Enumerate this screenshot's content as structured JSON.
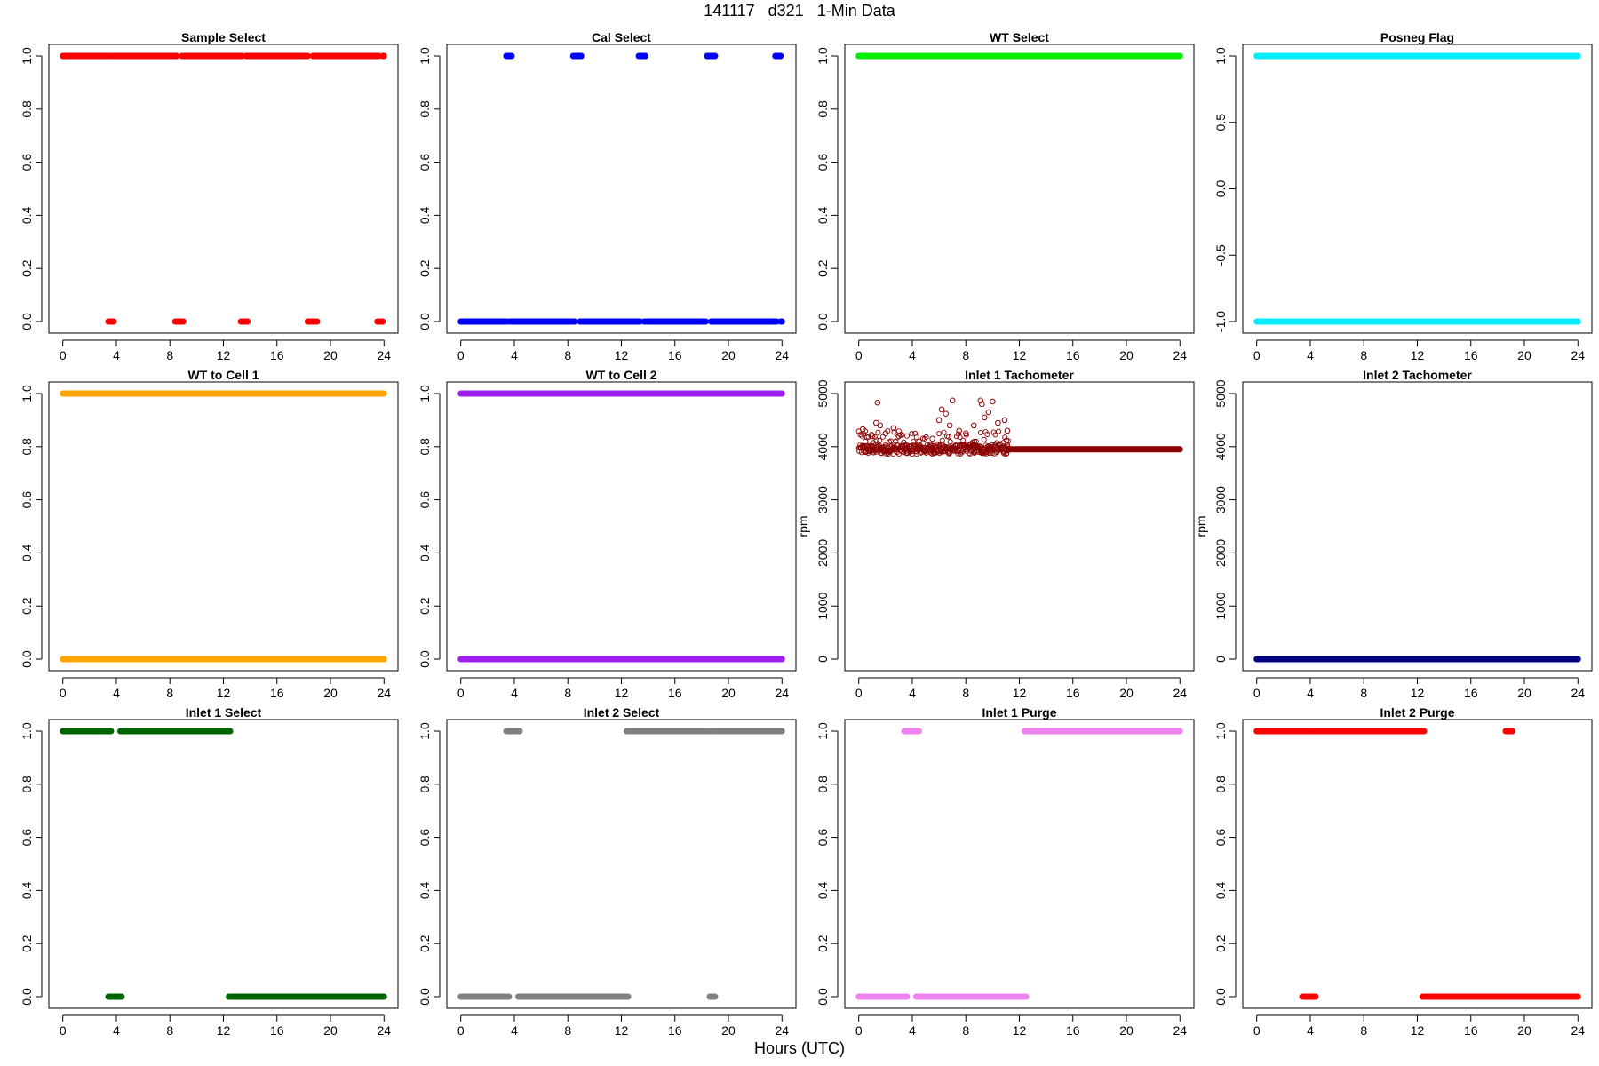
{
  "page": {
    "title": "141117   d321   1-Min Data",
    "x_caption": "Hours (UTC)"
  },
  "chart_data": [
    {
      "type": "scatter",
      "title": "Sample Select",
      "ylabel": "",
      "ylim": [
        0,
        1
      ],
      "yticks": [
        "0.0",
        "0.2",
        "0.4",
        "0.6",
        "0.8",
        "1.0"
      ],
      "yvals": [
        0,
        0.2,
        0.4,
        0.6,
        0.8,
        1.0
      ],
      "xlim": [
        0,
        24
      ],
      "xticks": [
        0,
        4,
        8,
        12,
        16,
        20,
        24
      ],
      "color": "#ff0000",
      "series": [
        {
          "y": 1,
          "x_ranges": [
            [
              0,
              3.5
            ],
            [
              3.7,
              8.5
            ],
            [
              8.9,
              13.4
            ],
            [
              13.7,
              18.3
            ],
            [
              18.7,
              23.6
            ],
            [
              23.9,
              24
            ]
          ]
        },
        {
          "y": 0,
          "x_ranges": [
            [
              3.4,
              3.8
            ],
            [
              8.4,
              9.0
            ],
            [
              13.3,
              13.8
            ],
            [
              18.3,
              19.0
            ],
            [
              23.5,
              23.9
            ]
          ]
        }
      ]
    },
    {
      "type": "scatter",
      "title": "Cal Select",
      "ylabel": "",
      "ylim": [
        0,
        1
      ],
      "yticks": [
        "0.0",
        "0.2",
        "0.4",
        "0.6",
        "0.8",
        "1.0"
      ],
      "yvals": [
        0,
        0.2,
        0.4,
        0.6,
        0.8,
        1.0
      ],
      "xlim": [
        0,
        24
      ],
      "xticks": [
        0,
        4,
        8,
        12,
        16,
        20,
        24
      ],
      "color": "#0000ff",
      "series": [
        {
          "y": 1,
          "x_ranges": [
            [
              3.4,
              3.8
            ],
            [
              8.4,
              9.0
            ],
            [
              13.3,
              13.8
            ],
            [
              18.4,
              19.0
            ],
            [
              23.5,
              23.9
            ]
          ]
        },
        {
          "y": 0,
          "x_ranges": [
            [
              0,
              3.5
            ],
            [
              3.7,
              8.5
            ],
            [
              8.9,
              13.4
            ],
            [
              13.7,
              18.3
            ],
            [
              18.7,
              23.6
            ],
            [
              23.9,
              24
            ]
          ]
        }
      ]
    },
    {
      "type": "scatter",
      "title": "WT Select",
      "ylabel": "",
      "ylim": [
        0,
        1
      ],
      "yticks": [
        "0.0",
        "0.2",
        "0.4",
        "0.6",
        "0.8",
        "1.0"
      ],
      "yvals": [
        0,
        0.2,
        0.4,
        0.6,
        0.8,
        1.0
      ],
      "xlim": [
        0,
        24
      ],
      "xticks": [
        0,
        4,
        8,
        12,
        16,
        20,
        24
      ],
      "color": "#00ee00",
      "series": [
        {
          "y": 1,
          "x_ranges": [
            [
              0,
              24
            ]
          ]
        }
      ]
    },
    {
      "type": "scatter",
      "title": "Posneg Flag",
      "ylabel": "",
      "ylim": [
        -1,
        1
      ],
      "yticks": [
        "-1.0",
        "-0.5",
        "0.0",
        "0.5",
        "1.0"
      ],
      "yvals": [
        -1,
        -0.5,
        0,
        0.5,
        1
      ],
      "xlim": [
        0,
        24
      ],
      "xticks": [
        0,
        4,
        8,
        12,
        16,
        20,
        24
      ],
      "color": "#00eeff",
      "series": [
        {
          "y": 1,
          "x_ranges": [
            [
              0,
              24
            ]
          ]
        },
        {
          "y": -1,
          "x_ranges": [
            [
              0,
              24
            ]
          ]
        }
      ]
    },
    {
      "type": "scatter",
      "title": "WT to Cell 1",
      "ylabel": "",
      "ylim": [
        0,
        1
      ],
      "yticks": [
        "0.0",
        "0.2",
        "0.4",
        "0.6",
        "0.8",
        "1.0"
      ],
      "yvals": [
        0,
        0.2,
        0.4,
        0.6,
        0.8,
        1.0
      ],
      "xlim": [
        0,
        24
      ],
      "xticks": [
        0,
        4,
        8,
        12,
        16,
        20,
        24
      ],
      "color": "#ffa500",
      "series": [
        {
          "y": 1,
          "x_ranges": [
            [
              0,
              24
            ]
          ]
        },
        {
          "y": 0,
          "x_ranges": [
            [
              0,
              24
            ]
          ]
        }
      ]
    },
    {
      "type": "scatter",
      "title": "WT to Cell 2",
      "ylabel": "",
      "ylim": [
        0,
        1
      ],
      "yticks": [
        "0.0",
        "0.2",
        "0.4",
        "0.6",
        "0.8",
        "1.0"
      ],
      "yvals": [
        0,
        0.2,
        0.4,
        0.6,
        0.8,
        1.0
      ],
      "xlim": [
        0,
        24
      ],
      "xticks": [
        0,
        4,
        8,
        12,
        16,
        20,
        24
      ],
      "color": "#a020f0",
      "series": [
        {
          "y": 1,
          "x_ranges": [
            [
              0,
              24
            ]
          ]
        },
        {
          "y": 0,
          "x_ranges": [
            [
              0,
              24
            ]
          ]
        }
      ]
    },
    {
      "type": "scatter",
      "title": "Inlet 1 Tachometer",
      "ylabel": "rpm",
      "ylim": [
        0,
        5000
      ],
      "yticks": [
        "0",
        "1000",
        "2000",
        "3000",
        "4000",
        "5000"
      ],
      "yvals": [
        0,
        1000,
        2000,
        3000,
        4000,
        5000
      ],
      "xlim": [
        0,
        24
      ],
      "xticks": [
        0,
        4,
        8,
        12,
        16,
        20,
        24
      ],
      "color": "#8b0000",
      "noisy": {
        "x_start": 0,
        "x_end": 11.2,
        "base": 3950
      },
      "spikes": [
        {
          "x": 0.3,
          "y": 4330
        },
        {
          "x": 0.5,
          "y": 4100
        },
        {
          "x": 1.0,
          "y": 4200
        },
        {
          "x": 1.3,
          "y": 4450
        },
        {
          "x": 1.4,
          "y": 4830
        },
        {
          "x": 1.6,
          "y": 4400
        },
        {
          "x": 2.0,
          "y": 4250
        },
        {
          "x": 2.6,
          "y": 4350
        },
        {
          "x": 3.0,
          "y": 4200
        },
        {
          "x": 4.5,
          "y": 4100
        },
        {
          "x": 5.5,
          "y": 4150
        },
        {
          "x": 6.0,
          "y": 4500
        },
        {
          "x": 6.2,
          "y": 4700
        },
        {
          "x": 6.5,
          "y": 4620
        },
        {
          "x": 6.8,
          "y": 4400
        },
        {
          "x": 7.0,
          "y": 4870
        },
        {
          "x": 7.5,
          "y": 4300
        },
        {
          "x": 8.0,
          "y": 4250
        },
        {
          "x": 8.6,
          "y": 4400
        },
        {
          "x": 9.1,
          "y": 4870
        },
        {
          "x": 9.2,
          "y": 4800
        },
        {
          "x": 9.4,
          "y": 4550
        },
        {
          "x": 9.7,
          "y": 4650
        },
        {
          "x": 10.0,
          "y": 4850
        },
        {
          "x": 10.4,
          "y": 4450
        },
        {
          "x": 10.9,
          "y": 4500
        },
        {
          "x": 11.1,
          "y": 4300
        }
      ],
      "series": [
        {
          "y": 3950,
          "x_ranges": [
            [
              11.2,
              24
            ]
          ]
        }
      ]
    },
    {
      "type": "scatter",
      "title": "Inlet 2 Tachometer",
      "ylabel": "rpm",
      "ylim": [
        0,
        5000
      ],
      "yticks": [
        "0",
        "1000",
        "2000",
        "3000",
        "4000",
        "5000"
      ],
      "yvals": [
        0,
        1000,
        2000,
        3000,
        4000,
        5000
      ],
      "xlim": [
        0,
        24
      ],
      "xticks": [
        0,
        4,
        8,
        12,
        16,
        20,
        24
      ],
      "color": "#000080",
      "series": [
        {
          "y": 0,
          "x_ranges": [
            [
              0,
              24
            ]
          ]
        }
      ]
    },
    {
      "type": "scatter",
      "title": "Inlet 1 Select",
      "ylabel": "",
      "ylim": [
        0,
        1
      ],
      "yticks": [
        "0.0",
        "0.2",
        "0.4",
        "0.6",
        "0.8",
        "1.0"
      ],
      "yvals": [
        0,
        0.2,
        0.4,
        0.6,
        0.8,
        1.0
      ],
      "xlim": [
        0,
        24
      ],
      "xticks": [
        0,
        4,
        8,
        12,
        16,
        20,
        24
      ],
      "color": "#006400",
      "series": [
        {
          "y": 1,
          "x_ranges": [
            [
              0,
              3.6
            ],
            [
              4.3,
              12.5
            ]
          ]
        },
        {
          "y": 0,
          "x_ranges": [
            [
              3.4,
              4.4
            ],
            [
              12.4,
              24
            ]
          ]
        }
      ]
    },
    {
      "type": "scatter",
      "title": "Inlet 2 Select",
      "ylabel": "",
      "ylim": [
        0,
        1
      ],
      "yticks": [
        "0.0",
        "0.2",
        "0.4",
        "0.6",
        "0.8",
        "1.0"
      ],
      "yvals": [
        0,
        0.2,
        0.4,
        0.6,
        0.8,
        1.0
      ],
      "xlim": [
        0,
        24
      ],
      "xticks": [
        0,
        4,
        8,
        12,
        16,
        20,
        24
      ],
      "color": "#808080",
      "series": [
        {
          "y": 1,
          "x_ranges": [
            [
              3.4,
              4.4
            ],
            [
              12.4,
              18.6
            ],
            [
              18.8,
              24
            ]
          ]
        },
        {
          "y": 0,
          "x_ranges": [
            [
              0,
              3.6
            ],
            [
              4.3,
              12.5
            ],
            [
              18.6,
              19.0
            ]
          ]
        }
      ]
    },
    {
      "type": "scatter",
      "title": "Inlet 1 Purge",
      "ylabel": "",
      "ylim": [
        0,
        1
      ],
      "yticks": [
        "0.0",
        "0.2",
        "0.4",
        "0.6",
        "0.8",
        "1.0"
      ],
      "yvals": [
        0,
        0.2,
        0.4,
        0.6,
        0.8,
        1.0
      ],
      "xlim": [
        0,
        24
      ],
      "xticks": [
        0,
        4,
        8,
        12,
        16,
        20,
        24
      ],
      "color": "#ee82ee",
      "series": [
        {
          "y": 1,
          "x_ranges": [
            [
              3.4,
              4.5
            ],
            [
              12.4,
              24
            ]
          ]
        },
        {
          "y": 0,
          "x_ranges": [
            [
              0,
              3.6
            ],
            [
              4.3,
              12.5
            ]
          ]
        }
      ]
    },
    {
      "type": "scatter",
      "title": "Inlet 2 Purge",
      "ylabel": "",
      "ylim": [
        0,
        1
      ],
      "yticks": [
        "0.0",
        "0.2",
        "0.4",
        "0.6",
        "0.8",
        "1.0"
      ],
      "yvals": [
        0,
        0.2,
        0.4,
        0.6,
        0.8,
        1.0
      ],
      "xlim": [
        0,
        24
      ],
      "xticks": [
        0,
        4,
        8,
        12,
        16,
        20,
        24
      ],
      "color": "#ff0000",
      "series": [
        {
          "y": 1,
          "x_ranges": [
            [
              0,
              4.1
            ],
            [
              4.2,
              12.5
            ],
            [
              18.6,
              19.1
            ]
          ]
        },
        {
          "y": 0,
          "x_ranges": [
            [
              3.4,
              4.4
            ],
            [
              12.4,
              18.9
            ],
            [
              19.0,
              24
            ]
          ]
        }
      ]
    }
  ]
}
